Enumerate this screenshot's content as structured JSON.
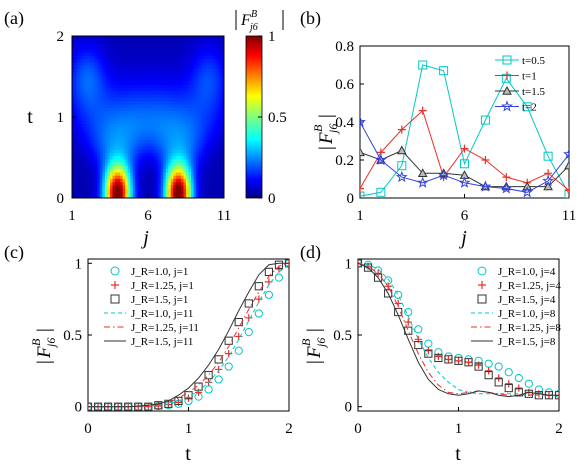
{
  "chart_data": [
    {
      "panel": "(a)",
      "type": "heatmap",
      "xlabel": "j",
      "ylabel": "t",
      "x_ticks": [
        "1",
        "6",
        "11"
      ],
      "y_ticks": [
        "0",
        "1",
        "2"
      ],
      "xlim": [
        1,
        11
      ],
      "ylim": [
        0,
        2
      ],
      "colorbar": {
        "label": "|F_{j6}^{B}|",
        "ticks": [
          "0",
          "0.5",
          "1"
        ],
        "range": [
          0,
          1
        ],
        "colormap": "jet"
      },
      "features": [
        {
          "j": 4,
          "t_peak_extent": 0.3,
          "max": 1.0
        },
        {
          "j": 8,
          "t_peak_extent": 0.3,
          "max": 1.0
        }
      ]
    },
    {
      "panel": "(b)",
      "type": "line",
      "xlabel": "j",
      "ylabel": "|F_{j6}^{B}|",
      "x": [
        1,
        2,
        3,
        4,
        5,
        6,
        7,
        8,
        9,
        10,
        11
      ],
      "x_ticks": [
        "1",
        "6",
        "11"
      ],
      "y_ticks": [
        "0",
        "0.2",
        "0.4",
        "0.6",
        "0.8"
      ],
      "xlim": [
        1,
        11
      ],
      "ylim": [
        0,
        0.8
      ],
      "legend_position": "top-right",
      "series": [
        {
          "name": "t=0.5",
          "color": "#00c8c8",
          "marker": "square",
          "values": [
            0.01,
            0.03,
            0.17,
            0.7,
            0.67,
            0.18,
            0.41,
            0.63,
            0.48,
            0.22,
            0.02
          ]
        },
        {
          "name": "t=1",
          "color": "#e8302a",
          "marker": "plus",
          "values": [
            0.05,
            0.24,
            0.36,
            0.46,
            0.11,
            0.26,
            0.2,
            0.11,
            0.08,
            0.13,
            0.04
          ]
        },
        {
          "name": "t=1.5",
          "color": "#333333",
          "marker": "triangle",
          "values": [
            0.24,
            0.2,
            0.25,
            0.13,
            0.13,
            0.12,
            0.06,
            0.06,
            0.06,
            0.06,
            0.17
          ]
        },
        {
          "name": "t=2",
          "color": "#3344dd",
          "marker": "star",
          "values": [
            0.4,
            0.2,
            0.11,
            0.08,
            0.12,
            0.08,
            0.06,
            0.05,
            0.03,
            0.09,
            0.23
          ]
        }
      ]
    },
    {
      "panel": "(c)",
      "type": "line",
      "xlabel": "t",
      "ylabel": "|F_{j6}^{B}|",
      "x_ticks": [
        "0",
        "1",
        "2"
      ],
      "y_ticks": [
        "0",
        "0.5",
        "1"
      ],
      "xlim": [
        0,
        2
      ],
      "ylim": [
        0,
        1
      ],
      "legend_position": "top-left",
      "series": [
        {
          "name": "J_R=1.0, j=1",
          "style": "marker",
          "marker": "circle",
          "color": "#00c8c8",
          "x": [
            0,
            0.1,
            0.2,
            0.3,
            0.4,
            0.5,
            0.6,
            0.7,
            0.8,
            0.9,
            1.0,
            1.1,
            1.2,
            1.3,
            1.4,
            1.5,
            1.6,
            1.7,
            1.8,
            1.9,
            2.0
          ],
          "y": [
            0,
            0,
            0,
            0,
            0,
            0,
            0,
            0.005,
            0.01,
            0.02,
            0.04,
            0.07,
            0.12,
            0.19,
            0.28,
            0.39,
            0.52,
            0.65,
            0.78,
            0.9,
            1.0
          ]
        },
        {
          "name": "J_R=1.25, j=1",
          "style": "marker",
          "marker": "plus",
          "color": "#e8302a",
          "x": [
            0,
            0.1,
            0.2,
            0.3,
            0.4,
            0.5,
            0.6,
            0.7,
            0.8,
            0.9,
            1.0,
            1.1,
            1.2,
            1.3,
            1.4,
            1.5,
            1.6,
            1.7,
            1.8,
            1.9,
            2.0
          ],
          "y": [
            0,
            0,
            0,
            0,
            0,
            0,
            0,
            0.005,
            0.015,
            0.03,
            0.06,
            0.1,
            0.17,
            0.26,
            0.37,
            0.49,
            0.62,
            0.75,
            0.87,
            0.96,
            1.0
          ]
        },
        {
          "name": "J_R=1.5, j=1",
          "style": "marker",
          "marker": "square",
          "color": "#333333",
          "x": [
            0,
            0.1,
            0.2,
            0.3,
            0.4,
            0.5,
            0.6,
            0.7,
            0.8,
            0.9,
            1.0,
            1.1,
            1.2,
            1.3,
            1.4,
            1.5,
            1.6,
            1.7,
            1.8,
            1.9,
            2.0
          ],
          "y": [
            0,
            0,
            0,
            0,
            0,
            0,
            0,
            0.01,
            0.02,
            0.04,
            0.08,
            0.14,
            0.22,
            0.33,
            0.46,
            0.59,
            0.72,
            0.84,
            0.94,
            0.99,
            1.0
          ]
        },
        {
          "name": "J_R=1.0, j=11",
          "style": "dashed",
          "color": "#00c8c8",
          "x": [
            0,
            0.2,
            0.4,
            0.6,
            0.7,
            0.8,
            0.9,
            1.0,
            1.1,
            1.2,
            1.3,
            1.4,
            1.5,
            1.6,
            1.7,
            1.8,
            1.9,
            2.0
          ],
          "y": [
            0,
            0,
            0,
            0.005,
            0.01,
            0.02,
            0.04,
            0.07,
            0.11,
            0.17,
            0.25,
            0.35,
            0.47,
            0.6,
            0.73,
            0.85,
            0.94,
            0.99
          ]
        },
        {
          "name": "J_R=1.25, j=11",
          "style": "dashdot",
          "color": "#e8302a",
          "x": [
            0,
            0.2,
            0.4,
            0.6,
            0.7,
            0.8,
            0.9,
            1.0,
            1.1,
            1.2,
            1.3,
            1.4,
            1.5,
            1.6,
            1.7,
            1.8,
            1.9,
            2.0
          ],
          "y": [
            0,
            0,
            0,
            0.005,
            0.015,
            0.03,
            0.06,
            0.1,
            0.15,
            0.22,
            0.31,
            0.42,
            0.55,
            0.68,
            0.8,
            0.91,
            0.98,
            1.0
          ]
        },
        {
          "name": "J_R=1.5, j=11",
          "style": "solid",
          "color": "#333333",
          "x": [
            0,
            0.2,
            0.4,
            0.6,
            0.7,
            0.8,
            0.9,
            1.0,
            1.1,
            1.2,
            1.3,
            1.4,
            1.5,
            1.6,
            1.7,
            1.8,
            1.9,
            2.0
          ],
          "y": [
            0,
            0,
            0,
            0.01,
            0.02,
            0.04,
            0.08,
            0.13,
            0.2,
            0.29,
            0.4,
            0.53,
            0.67,
            0.8,
            0.92,
            0.99,
            1.0,
            1.0
          ]
        }
      ]
    },
    {
      "panel": "(d)",
      "type": "line",
      "xlabel": "t",
      "ylabel": "|F_{j6}^{B}|",
      "x_ticks": [
        "0",
        "1",
        "2"
      ],
      "y_ticks": [
        "0",
        "0.5",
        "1"
      ],
      "xlim": [
        0,
        2
      ],
      "ylim": [
        0,
        1
      ],
      "legend_position": "top-right",
      "series": [
        {
          "name": "J_R=1.0, j=4",
          "style": "marker",
          "marker": "circle",
          "color": "#00c8c8",
          "x": [
            0,
            0.1,
            0.2,
            0.3,
            0.4,
            0.5,
            0.6,
            0.7,
            0.8,
            0.9,
            1.0,
            1.1,
            1.2,
            1.3,
            1.4,
            1.5,
            1.6,
            1.7,
            1.8,
            1.9,
            2.0
          ],
          "y": [
            1.0,
            0.99,
            0.95,
            0.88,
            0.78,
            0.66,
            0.54,
            0.44,
            0.38,
            0.35,
            0.34,
            0.33,
            0.32,
            0.3,
            0.28,
            0.24,
            0.2,
            0.16,
            0.12,
            0.1,
            0.09
          ]
        },
        {
          "name": "J_R=1.25, j=4",
          "style": "marker",
          "marker": "plus",
          "color": "#e8302a",
          "x": [
            0,
            0.1,
            0.2,
            0.3,
            0.4,
            0.5,
            0.6,
            0.7,
            0.8,
            0.9,
            1.0,
            1.1,
            1.2,
            1.3,
            1.4,
            1.5,
            1.6,
            1.7,
            1.8,
            1.9,
            2.0
          ],
          "y": [
            1.0,
            0.98,
            0.93,
            0.84,
            0.72,
            0.59,
            0.47,
            0.39,
            0.35,
            0.33,
            0.32,
            0.31,
            0.29,
            0.25,
            0.2,
            0.16,
            0.13,
            0.1,
            0.09,
            0.08,
            0.08
          ]
        },
        {
          "name": "J_R=1.5, j=4",
          "style": "marker",
          "marker": "square",
          "color": "#333333",
          "x": [
            0,
            0.1,
            0.2,
            0.3,
            0.4,
            0.5,
            0.6,
            0.7,
            0.8,
            0.9,
            1.0,
            1.1,
            1.2,
            1.3,
            1.4,
            1.5,
            1.6,
            1.7,
            1.8,
            1.9,
            2.0
          ],
          "y": [
            1.0,
            0.97,
            0.9,
            0.79,
            0.66,
            0.53,
            0.43,
            0.37,
            0.34,
            0.33,
            0.32,
            0.31,
            0.28,
            0.22,
            0.17,
            0.13,
            0.1,
            0.09,
            0.08,
            0.08,
            0.08
          ]
        },
        {
          "name": "J_R=1.0, j=8",
          "style": "dashed",
          "color": "#00c8c8",
          "x": [
            0,
            0.1,
            0.2,
            0.3,
            0.4,
            0.5,
            0.6,
            0.7,
            0.8,
            0.9,
            1.0,
            1.1,
            1.2,
            1.3,
            1.4,
            1.5,
            1.6,
            1.7,
            1.8,
            1.9,
            2.0
          ],
          "y": [
            1.0,
            0.99,
            0.96,
            0.89,
            0.78,
            0.63,
            0.47,
            0.34,
            0.24,
            0.17,
            0.12,
            0.1,
            0.09,
            0.09,
            0.09,
            0.09,
            0.09,
            0.08,
            0.08,
            0.08,
            0.08
          ]
        },
        {
          "name": "J_R=1.25, j=8",
          "style": "dashdot",
          "color": "#e8302a",
          "x": [
            0,
            0.1,
            0.2,
            0.3,
            0.4,
            0.5,
            0.6,
            0.7,
            0.8,
            0.9,
            1.0,
            1.1,
            1.2,
            1.3,
            1.4,
            1.5,
            1.6,
            1.7,
            1.8,
            1.9,
            2.0
          ],
          "y": [
            1.0,
            0.98,
            0.93,
            0.84,
            0.7,
            0.53,
            0.37,
            0.24,
            0.15,
            0.1,
            0.09,
            0.1,
            0.11,
            0.1,
            0.09,
            0.08,
            0.08,
            0.08,
            0.09,
            0.08,
            0.08
          ]
        },
        {
          "name": "J_R=1.5, j=8",
          "style": "solid",
          "color": "#333333",
          "x": [
            0,
            0.1,
            0.2,
            0.3,
            0.4,
            0.5,
            0.6,
            0.7,
            0.8,
            0.9,
            1.0,
            1.1,
            1.2,
            1.3,
            1.4,
            1.5,
            1.6,
            1.7,
            1.8,
            1.9,
            2.0
          ],
          "y": [
            1.0,
            0.97,
            0.9,
            0.79,
            0.64,
            0.47,
            0.31,
            0.19,
            0.12,
            0.09,
            0.08,
            0.09,
            0.11,
            0.1,
            0.08,
            0.07,
            0.08,
            0.1,
            0.09,
            0.08,
            0.08
          ]
        }
      ]
    }
  ]
}
